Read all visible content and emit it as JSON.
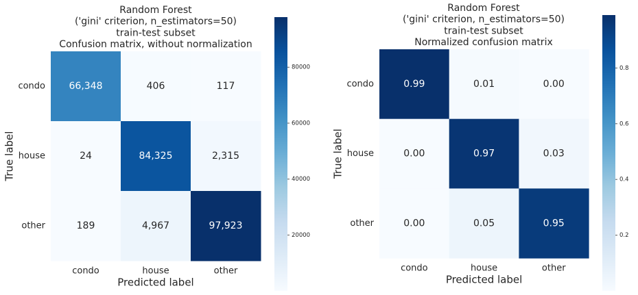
{
  "chart_data": [
    {
      "type": "heatmap",
      "title": [
        "Random Forest",
        "('gini' criterion, n_estimators=50)",
        "train-test subset",
        "Confusion matrix, without normalization"
      ],
      "x_label": "Predicted label",
      "y_label": "True label",
      "x_categories": [
        "condo",
        "house",
        "other"
      ],
      "y_categories": [
        "condo",
        "house",
        "other"
      ],
      "values": [
        [
          66348,
          406,
          117
        ],
        [
          24,
          84325,
          2315
        ],
        [
          189,
          4967,
          97923
        ]
      ],
      "value_labels": [
        [
          "66,348",
          "406",
          "117"
        ],
        [
          "24",
          "84,325",
          "2,315"
        ],
        [
          "189",
          "4,967",
          "97,923"
        ]
      ],
      "clim": [
        24,
        97923
      ],
      "cticks": [
        20000,
        40000,
        60000,
        80000
      ],
      "cmap": [
        "#f7fbff",
        "#deebf7",
        "#c6dbef",
        "#9ecae1",
        "#6baed6",
        "#4292c6",
        "#2171b5",
        "#08519c",
        "#08306b"
      ]
    },
    {
      "type": "heatmap",
      "title": [
        "Random Forest",
        "('gini' criterion, n_estimators=50)",
        "train-test subset",
        "Normalized confusion matrix"
      ],
      "x_label": "Predicted label",
      "y_label": "True label",
      "x_categories": [
        "condo",
        "house",
        "other"
      ],
      "y_categories": [
        "condo",
        "house",
        "other"
      ],
      "values": [
        [
          0.99,
          0.01,
          0
        ],
        [
          0,
          0.97,
          0.03
        ],
        [
          0,
          0.05,
          0.95
        ]
      ],
      "value_labels": [
        [
          "0.99",
          "0.01",
          "0.00"
        ],
        [
          "0.00",
          "0.97",
          "0.03"
        ],
        [
          "0.00",
          "0.05",
          "0.95"
        ]
      ],
      "clim": [
        0,
        0.99
      ],
      "cticks": [
        0.2,
        0.4,
        0.6,
        0.8
      ],
      "cmap": [
        "#f7fbff",
        "#deebf7",
        "#c6dbef",
        "#9ecae1",
        "#6baed6",
        "#4292c6",
        "#2171b5",
        "#08519c",
        "#08306b"
      ]
    }
  ]
}
